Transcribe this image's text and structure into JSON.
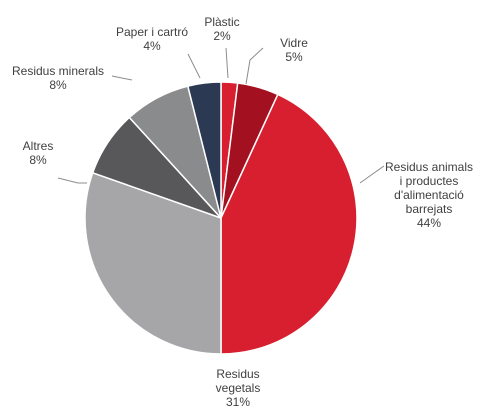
{
  "chart_data": {
    "type": "pie",
    "title": "",
    "slices": [
      {
        "label": "Plàstic",
        "value": 2,
        "value_label": "2%",
        "color": "#d71f30"
      },
      {
        "label": "Vidre",
        "value": 5,
        "value_label": "5%",
        "color": "#a3101f"
      },
      {
        "label": "Residus animals i productes d'alimentació barrejats",
        "value": 44,
        "value_label": "44%",
        "color": "#d71f30"
      },
      {
        "label": "Residus vegetals",
        "value": 31,
        "value_label": "31%",
        "color": "#a6a6a8"
      },
      {
        "label": "Altres",
        "value": 8,
        "value_label": "8%",
        "color": "#58585a"
      },
      {
        "label": "Residus minerals",
        "value": 8,
        "value_label": "8%",
        "color": "#8a8b8d"
      },
      {
        "label": "Paper i cartró",
        "value": 4,
        "value_label": "4%",
        "color": "#2b3a52"
      }
    ]
  },
  "labels": {
    "plastic": {
      "name": "Plàstic",
      "pct": "2%"
    },
    "vidre": {
      "name": "Vidre",
      "pct": "5%"
    },
    "animals": {
      "lines": [
        "Residus animals",
        "i productes",
        "d'alimentació",
        "barrejats"
      ],
      "pct": "44%"
    },
    "vegetals": {
      "lines": [
        "Residus",
        "vegetals"
      ],
      "pct": "31%"
    },
    "altres": {
      "name": "Altres",
      "pct": "8%"
    },
    "minerals": {
      "name": "Residus minerals",
      "pct": "8%"
    },
    "paper": {
      "name": "Paper i cartró",
      "pct": "4%"
    }
  }
}
